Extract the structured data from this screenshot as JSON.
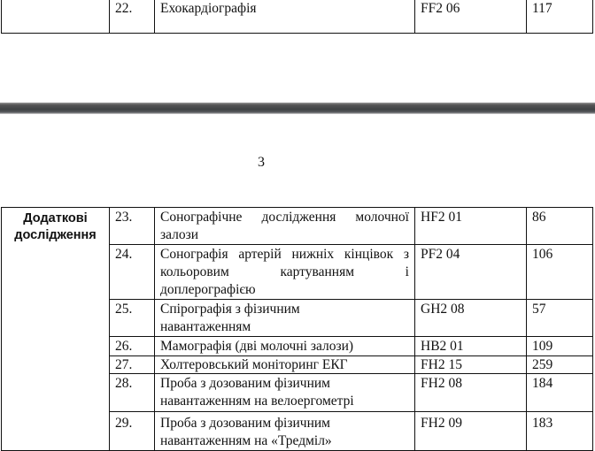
{
  "top_table": {
    "rows": [
      {
        "num": "22.",
        "name": "Ехокардіографія",
        "code": "FF2 06",
        "value": "117"
      }
    ]
  },
  "page_number": "3",
  "main_table": {
    "group_label": "Додаткові дослідження",
    "rows": [
      {
        "num": "23.",
        "name": "Сонографічне дослідження молочної залози",
        "code": "HF2 01",
        "value": "86"
      },
      {
        "num": "24.",
        "name": "Сонографія артерій нижніх кінцівок з кольоровим картуванням і доплерографією",
        "code": "PF2 04",
        "value": "106"
      },
      {
        "num": "25.",
        "name": "Спірографія з фізичним навантаженням",
        "code": "GH2 08",
        "value": "57"
      },
      {
        "num": "26.",
        "name": "Мамографія (дві молочні залози)",
        "code": "HB2 01",
        "value": "109"
      },
      {
        "num": "27.",
        "name": "Холтеровський моніторинг ЕКГ",
        "code": "FH2 15",
        "value": "259"
      },
      {
        "num": "28.",
        "name": "Проба з дозованим фізичним навантаженням на велоергометрі",
        "code": "FH2 08",
        "value": "184"
      },
      {
        "num": "29.",
        "name": "Проба з дозованим фізичним навантаженням на «Тредміл»",
        "code": "FH2 09",
        "value": "183"
      }
    ]
  }
}
